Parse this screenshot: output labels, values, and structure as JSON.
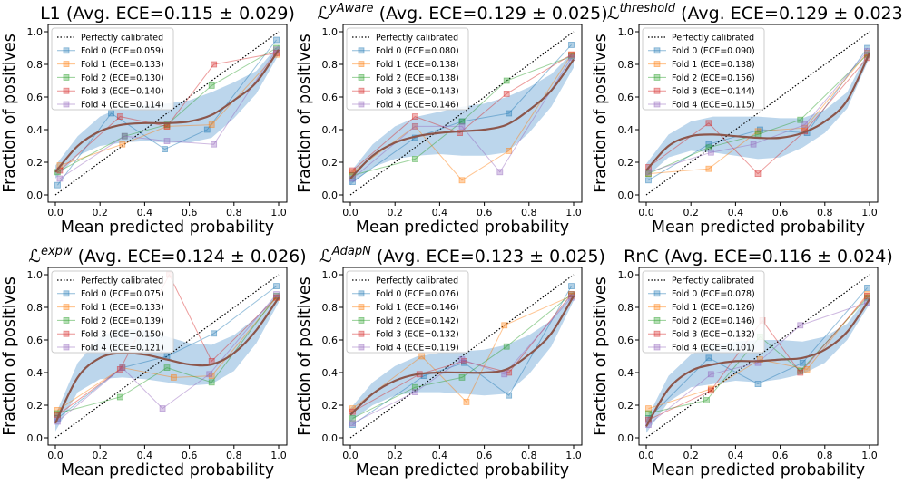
{
  "figure": {
    "xlabel": "Mean predicted probability",
    "ylabel": "Fraction of positives",
    "xticks": [
      "0.0",
      "0.2",
      "0.4",
      "0.6",
      "0.8",
      "1.0"
    ],
    "yticks": [
      "0.0",
      "0.2",
      "0.4",
      "0.6",
      "0.8",
      "1.0"
    ],
    "reference_label": "Perfectly calibrated",
    "fold_colors": [
      "#1f77b4",
      "#ff7f0e",
      "#2ca02c",
      "#d62728",
      "#9467bd"
    ],
    "mean_curve_color": "#8c564b",
    "band_color": "#a6c8e6"
  },
  "chart_data": [
    {
      "type": "line",
      "title": "L1 (Avg. ECE=0.115 ± 0.029)",
      "title_main": "L1",
      "title_sup": "",
      "title_rest": " (Avg. ECE=0.115 ± 0.029)",
      "xlim": [
        0,
        1
      ],
      "ylim": [
        0,
        1
      ],
      "legend": [
        "Fold 0 (ECE=0.059)",
        "Fold 1 (ECE=0.133)",
        "Fold 2 (ECE=0.130)",
        "Fold 3 (ECE=0.140)",
        "Fold 4 (ECE=0.114)"
      ],
      "folds": [
        {
          "x": [
            0.01,
            0.25,
            0.49,
            0.68,
            0.99
          ],
          "y": [
            0.06,
            0.5,
            0.28,
            0.4,
            0.95
          ]
        },
        {
          "x": [
            0.02,
            0.3,
            0.5,
            0.7,
            0.99
          ],
          "y": [
            0.18,
            0.31,
            0.42,
            0.43,
            0.86
          ]
        },
        {
          "x": [
            0.01,
            0.31,
            0.5,
            0.7,
            0.99
          ],
          "y": [
            0.14,
            0.36,
            0.43,
            0.67,
            0.9
          ]
        },
        {
          "x": [
            0.02,
            0.29,
            0.5,
            0.71,
            0.99
          ],
          "y": [
            0.15,
            0.48,
            0.42,
            0.8,
            0.87
          ]
        },
        {
          "x": [
            0.02,
            0.31,
            0.5,
            0.71,
            0.99
          ],
          "y": [
            0.1,
            0.36,
            0.33,
            0.31,
            0.89
          ]
        }
      ],
      "mean": {
        "x": [
          0,
          0.1,
          0.2,
          0.3,
          0.4,
          0.5,
          0.6,
          0.7,
          0.8,
          0.9,
          1.0
        ],
        "y": [
          0.14,
          0.3,
          0.39,
          0.43,
          0.44,
          0.44,
          0.45,
          0.49,
          0.58,
          0.69,
          0.89
        ]
      },
      "band_width": [
        0.04,
        0.06,
        0.09,
        0.11,
        0.11,
        0.12,
        0.13,
        0.14,
        0.11,
        0.07,
        0.03
      ]
    },
    {
      "type": "line",
      "title": "L^yAware (Avg. ECE=0.129 ± 0.025)",
      "title_main": "ℒ",
      "title_sup": "yAware",
      "title_rest": " (Avg. ECE=0.129 ± 0.025)",
      "xlim": [
        0,
        1
      ],
      "ylim": [
        0,
        1
      ],
      "legend": [
        "Fold 0 (ECE=0.080)",
        "Fold 1 (ECE=0.138)",
        "Fold 2 (ECE=0.138)",
        "Fold 3 (ECE=0.143)",
        "Fold 4 (ECE=0.146)"
      ],
      "folds": [
        {
          "x": [
            0.01,
            0.29,
            0.5,
            0.71,
            0.99
          ],
          "y": [
            0.08,
            0.35,
            0.45,
            0.5,
            0.92
          ]
        },
        {
          "x": [
            0.01,
            0.29,
            0.5,
            0.71,
            0.99
          ],
          "y": [
            0.14,
            0.42,
            0.09,
            0.27,
            0.86
          ]
        },
        {
          "x": [
            0.01,
            0.29,
            0.5,
            0.7,
            0.99
          ],
          "y": [
            0.12,
            0.22,
            0.45,
            0.7,
            0.85
          ]
        },
        {
          "x": [
            0.01,
            0.29,
            0.49,
            0.7,
            0.99
          ],
          "y": [
            0.15,
            0.48,
            0.38,
            0.62,
            0.86
          ]
        },
        {
          "x": [
            0.01,
            0.29,
            0.5,
            0.67,
            0.99
          ],
          "y": [
            0.1,
            0.42,
            0.42,
            0.14,
            0.84
          ]
        }
      ],
      "mean": {
        "x": [
          0,
          0.1,
          0.2,
          0.3,
          0.4,
          0.5,
          0.6,
          0.7,
          0.8,
          0.9,
          1.0
        ],
        "y": [
          0.1,
          0.24,
          0.32,
          0.36,
          0.38,
          0.39,
          0.4,
          0.43,
          0.52,
          0.64,
          0.83
        ]
      },
      "band_width": [
        0.04,
        0.07,
        0.1,
        0.12,
        0.13,
        0.15,
        0.16,
        0.17,
        0.14,
        0.1,
        0.05
      ]
    },
    {
      "type": "line",
      "title": "L^threshold (Avg. ECE=0.129 ± 0.023)",
      "title_main": "ℒ",
      "title_sup": "threshold",
      "title_rest": " (Avg. ECE=0.129 ± 0.023)",
      "xlim": [
        0,
        1
      ],
      "ylim": [
        0,
        1
      ],
      "legend": [
        "Fold 0 (ECE=0.090)",
        "Fold 1 (ECE=0.138)",
        "Fold 2 (ECE=0.156)",
        "Fold 3 (ECE=0.144)",
        "Fold 4 (ECE=0.115)"
      ],
      "folds": [
        {
          "x": [
            0.01,
            0.28,
            0.51,
            0.72,
            0.99
          ],
          "y": [
            0.09,
            0.31,
            0.4,
            0.38,
            0.9
          ]
        },
        {
          "x": [
            0.01,
            0.28,
            0.5,
            0.71,
            0.99
          ],
          "y": [
            0.13,
            0.16,
            0.39,
            0.41,
            0.87
          ]
        },
        {
          "x": [
            0.01,
            0.28,
            0.5,
            0.69,
            0.99
          ],
          "y": [
            0.13,
            0.29,
            0.37,
            0.46,
            0.86
          ]
        },
        {
          "x": [
            0.01,
            0.28,
            0.5,
            0.71,
            0.99
          ],
          "y": [
            0.17,
            0.44,
            0.13,
            0.39,
            0.84
          ]
        },
        {
          "x": [
            0.01,
            0.29,
            0.48,
            0.71,
            0.99
          ],
          "y": [
            0.14,
            0.26,
            0.31,
            0.43,
            0.88
          ]
        }
      ],
      "mean": {
        "x": [
          0,
          0.1,
          0.2,
          0.3,
          0.4,
          0.5,
          0.6,
          0.7,
          0.8,
          0.9,
          1.0
        ],
        "y": [
          0.15,
          0.3,
          0.36,
          0.37,
          0.36,
          0.35,
          0.35,
          0.38,
          0.45,
          0.58,
          0.87
        ]
      },
      "band_width": [
        0.04,
        0.07,
        0.09,
        0.11,
        0.12,
        0.13,
        0.12,
        0.09,
        0.07,
        0.05,
        0.03
      ]
    },
    {
      "type": "line",
      "title": "L^expw (Avg. ECE=0.124 ± 0.026)",
      "title_main": "ℒ",
      "title_sup": "expw",
      "title_rest": " (Avg. ECE=0.124 ± 0.026)",
      "xlim": [
        0,
        1
      ],
      "ylim": [
        0,
        1
      ],
      "legend": [
        "Fold 0 (ECE=0.075)",
        "Fold 1 (ECE=0.133)",
        "Fold 2 (ECE=0.139)",
        "Fold 3 (ECE=0.150)",
        "Fold 4 (ECE=0.121)"
      ],
      "folds": [
        {
          "x": [
            0.01,
            0.3,
            0.5,
            0.71,
            0.99
          ],
          "y": [
            0.12,
            0.43,
            0.5,
            0.64,
            0.93
          ]
        },
        {
          "x": [
            0.01,
            0.3,
            0.53,
            0.7,
            0.99
          ],
          "y": [
            0.17,
            0.43,
            0.37,
            0.38,
            0.86
          ]
        },
        {
          "x": [
            0.01,
            0.29,
            0.5,
            0.7,
            0.99
          ],
          "y": [
            0.15,
            0.25,
            0.43,
            0.34,
            0.87
          ]
        },
        {
          "x": [
            0.01,
            0.29,
            0.51,
            0.7,
            0.99
          ],
          "y": [
            0.14,
            0.42,
            1.0,
            0.47,
            0.86
          ]
        },
        {
          "x": [
            0.01,
            0.3,
            0.48,
            0.69,
            0.99
          ],
          "y": [
            0.1,
            0.43,
            0.18,
            0.39,
            0.88
          ]
        }
      ],
      "mean": {
        "x": [
          0,
          0.1,
          0.2,
          0.3,
          0.4,
          0.5,
          0.6,
          0.7,
          0.8,
          0.9,
          1.0
        ],
        "y": [
          0.09,
          0.37,
          0.49,
          0.52,
          0.51,
          0.48,
          0.45,
          0.45,
          0.52,
          0.66,
          0.86
        ]
      },
      "band_width": [
        0.05,
        0.09,
        0.13,
        0.15,
        0.15,
        0.14,
        0.13,
        0.12,
        0.11,
        0.08,
        0.03
      ]
    },
    {
      "type": "line",
      "title": "L^AdapN (Avg. ECE=0.123 ± 0.025)",
      "title_main": "ℒ",
      "title_sup": "AdapN",
      "title_rest": " (Avg. ECE=0.123 ± 0.025)",
      "xlim": [
        0,
        1
      ],
      "ylim": [
        0,
        1
      ],
      "legend": [
        "Fold 0 (ECE=0.076)",
        "Fold 1 (ECE=0.146)",
        "Fold 2 (ECE=0.142)",
        "Fold 3 (ECE=0.132)",
        "Fold 4 (ECE=0.119)"
      ],
      "folds": [
        {
          "x": [
            0.01,
            0.33,
            0.51,
            0.71,
            0.99
          ],
          "y": [
            0.08,
            0.38,
            0.46,
            0.26,
            0.93
          ]
        },
        {
          "x": [
            0.01,
            0.32,
            0.52,
            0.69,
            0.99
          ],
          "y": [
            0.18,
            0.5,
            0.22,
            0.69,
            0.87
          ]
        },
        {
          "x": [
            0.01,
            0.29,
            0.5,
            0.7,
            0.99
          ],
          "y": [
            0.12,
            0.31,
            0.37,
            0.56,
            0.88
          ]
        },
        {
          "x": [
            0.01,
            0.31,
            0.51,
            0.71,
            0.99
          ],
          "y": [
            0.16,
            0.39,
            0.47,
            0.4,
            0.88
          ]
        },
        {
          "x": [
            0.01,
            0.29,
            0.5,
            0.69,
            0.99
          ],
          "y": [
            0.09,
            0.28,
            0.48,
            0.39,
            0.86
          ]
        }
      ],
      "mean": {
        "x": [
          0,
          0.1,
          0.2,
          0.3,
          0.4,
          0.5,
          0.6,
          0.7,
          0.8,
          0.9,
          1.0
        ],
        "y": [
          0.14,
          0.27,
          0.35,
          0.39,
          0.4,
          0.4,
          0.4,
          0.42,
          0.51,
          0.64,
          0.87
        ]
      },
      "band_width": [
        0.04,
        0.07,
        0.09,
        0.11,
        0.12,
        0.13,
        0.14,
        0.15,
        0.12,
        0.08,
        0.03
      ]
    },
    {
      "type": "line",
      "title": "RnC (Avg. ECE=0.116 ± 0.024)",
      "title_main": "RnC",
      "title_sup": "",
      "title_rest": " (Avg. ECE=0.116 ± 0.024)",
      "xlim": [
        0,
        1
      ],
      "ylim": [
        0,
        1
      ],
      "legend": [
        "Fold 0 (ECE=0.078)",
        "Fold 1 (ECE=0.126)",
        "Fold 2 (ECE=0.146)",
        "Fold 3 (ECE=0.132)",
        "Fold 4 (ECE=0.101)"
      ],
      "folds": [
        {
          "x": [
            0.01,
            0.28,
            0.5,
            0.7,
            0.99
          ],
          "y": [
            0.12,
            0.49,
            0.33,
            0.46,
            0.92
          ]
        },
        {
          "x": [
            0.01,
            0.29,
            0.51,
            0.72,
            0.99
          ],
          "y": [
            0.18,
            0.3,
            0.48,
            0.42,
            0.88
          ]
        },
        {
          "x": [
            0.01,
            0.27,
            0.51,
            0.69,
            0.99
          ],
          "y": [
            0.15,
            0.23,
            0.62,
            0.41,
            0.86
          ]
        },
        {
          "x": [
            0.01,
            0.29,
            0.52,
            0.69,
            0.99
          ],
          "y": [
            0.11,
            0.29,
            0.72,
            0.4,
            0.87
          ]
        },
        {
          "x": [
            0.01,
            0.29,
            0.5,
            0.69,
            0.99
          ],
          "y": [
            0.08,
            0.39,
            0.46,
            0.69,
            0.83
          ]
        }
      ],
      "mean": {
        "x": [
          0,
          0.1,
          0.2,
          0.3,
          0.4,
          0.5,
          0.6,
          0.7,
          0.8,
          0.9,
          1.0
        ],
        "y": [
          0.07,
          0.3,
          0.41,
          0.45,
          0.47,
          0.47,
          0.48,
          0.49,
          0.54,
          0.65,
          0.85
        ]
      },
      "band_width": [
        0.04,
        0.08,
        0.1,
        0.12,
        0.12,
        0.13,
        0.12,
        0.1,
        0.08,
        0.05,
        0.03
      ]
    }
  ]
}
